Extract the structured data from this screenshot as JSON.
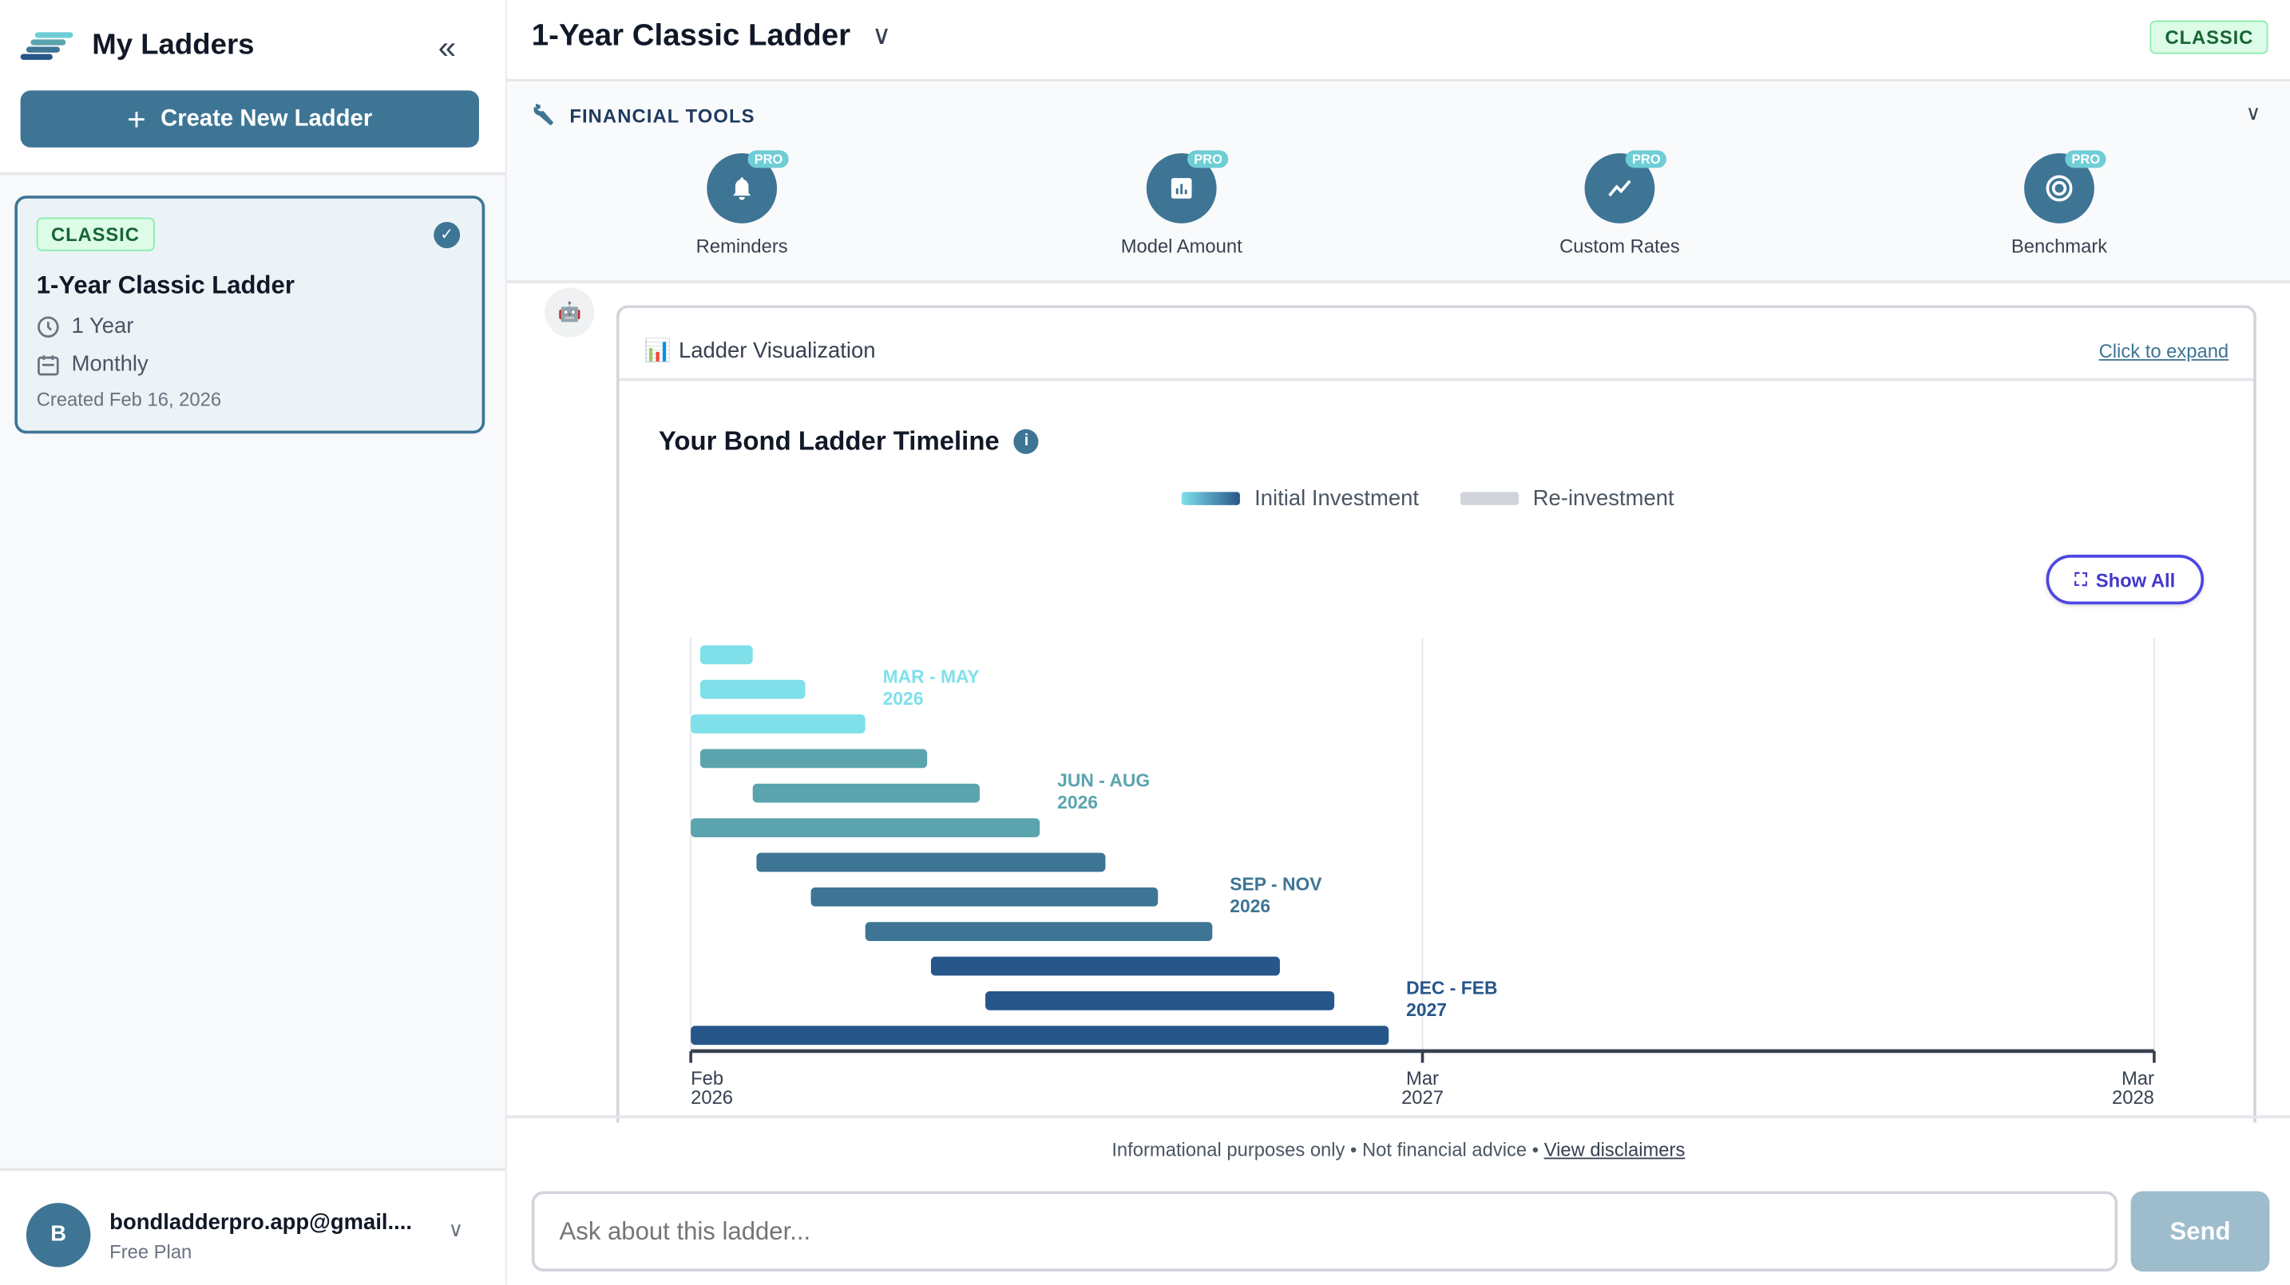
{
  "sidebar": {
    "title": "My Ladders",
    "create_label": "Create New Ladder",
    "ladders": [
      {
        "badge": "CLASSIC",
        "title": "1-Year Classic Ladder",
        "term": "1 Year",
        "frequency": "Monthly",
        "created": "Created Feb 16, 2026",
        "selected": true
      }
    ],
    "user": {
      "initial": "B",
      "email": "bondladderpro.app@gmail....",
      "plan": "Free Plan"
    }
  },
  "header": {
    "title": "1-Year Classic Ladder",
    "badge": "CLASSIC"
  },
  "tools": {
    "label": "FINANCIAL TOOLS",
    "pro_badge": "PRO",
    "items": [
      {
        "label": "Reminders",
        "icon": "bell-icon"
      },
      {
        "label": "Model Amount",
        "icon": "bar-chart-icon"
      },
      {
        "label": "Custom Rates",
        "icon": "trend-line-icon"
      },
      {
        "label": "Benchmark",
        "icon": "target-icon"
      }
    ]
  },
  "viz": {
    "title": "Ladder Visualization",
    "expand": "Click to expand",
    "chart_title": "Your Bond Ladder Timeline",
    "show_all": "Show All"
  },
  "chart_data": {
    "type": "bar",
    "orientation": "horizontal-range",
    "legend": [
      {
        "name": "Initial Investment",
        "color": "gradient #7fe0ea→#27568a"
      },
      {
        "name": "Re-investment",
        "color": "#d1d5db"
      }
    ],
    "legend_position": "top",
    "x_ticks": [
      [
        "Feb",
        "2026"
      ],
      [
        "Mar",
        "2027"
      ],
      [
        "Mar",
        "2028"
      ]
    ],
    "grid": true,
    "groups": [
      {
        "label": [
          "MAR - MAY",
          "2026"
        ],
        "color": "#7fe0ea",
        "label_color": "#7fe0ea"
      },
      {
        "label": [
          "JUN - AUG",
          "2026"
        ],
        "color": "#5ba4ae",
        "label_color": "#5ba4ae"
      },
      {
        "label": [
          "SEP - NOV",
          "2026"
        ],
        "color": "#3e7595",
        "label_color": "#3e7595"
      },
      {
        "label": [
          "DEC - FEB",
          "2027"
        ],
        "color": "#27568a",
        "label_color": "#27568a"
      }
    ],
    "bars": [
      {
        "group": 0,
        "start": "2026-02-06",
        "end": "2026-03-04"
      },
      {
        "group": 0,
        "start": "2026-02-06",
        "end": "2026-04-02"
      },
      {
        "group": 0,
        "start": "2026-02-01",
        "end": "2026-05-04"
      },
      {
        "group": 1,
        "start": "2026-02-06",
        "end": "2026-06-07"
      },
      {
        "group": 1,
        "start": "2026-03-04",
        "end": "2026-07-05"
      },
      {
        "group": 1,
        "start": "2026-02-01",
        "end": "2026-08-07"
      },
      {
        "group": 2,
        "start": "2026-03-06",
        "end": "2026-09-12"
      },
      {
        "group": 2,
        "start": "2026-04-05",
        "end": "2026-10-10"
      },
      {
        "group": 2,
        "start": "2026-05-04",
        "end": "2026-11-09"
      },
      {
        "group": 3,
        "start": "2026-06-09",
        "end": "2026-12-15"
      },
      {
        "group": 3,
        "start": "2026-07-08",
        "end": "2027-01-14"
      },
      {
        "group": 3,
        "start": "2026-02-01",
        "end": "2027-02-13"
      }
    ]
  },
  "footer": {
    "note": "Informational purposes only • Not financial advice • ",
    "link": "View disclaimers",
    "placeholder": "Ask about this ladder...",
    "send": "Send"
  },
  "colors": {
    "primary": "#3e7595",
    "badge_green": "#166534",
    "accent_indigo": "#4f46e5"
  }
}
